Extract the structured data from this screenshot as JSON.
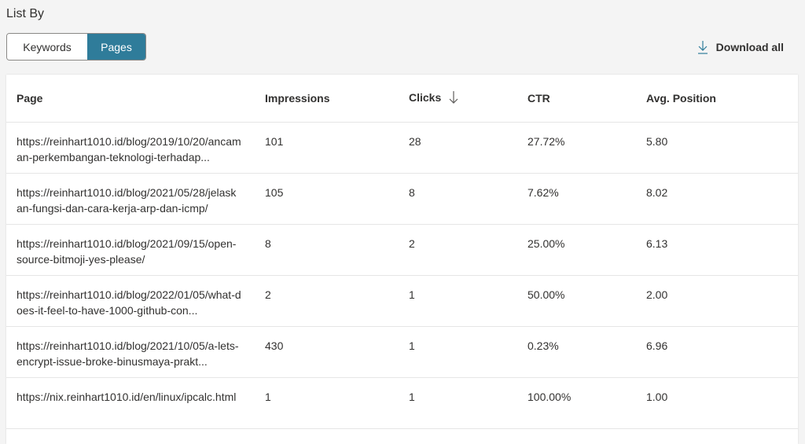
{
  "list_by_label": "List By",
  "toggle": {
    "keywords": "Keywords",
    "pages": "Pages",
    "selected": "Pages"
  },
  "download_label": "Download all",
  "accent": "#2f7c9a",
  "table": {
    "headers": [
      "Page",
      "Impressions",
      "Clicks",
      "CTR",
      "Avg. Position"
    ],
    "sorted_by": "Clicks",
    "sort_direction": "descending",
    "rows": [
      {
        "page": "https://reinhart1010.id/blog/2019/10/20/ancaman-perkembangan-teknologi-terhadap...",
        "impressions": "101",
        "clicks": "28",
        "ctr": "27.72%",
        "position": "5.80"
      },
      {
        "page": "https://reinhart1010.id/blog/2021/05/28/jelaskan-fungsi-dan-cara-kerja-arp-dan-icmp/",
        "impressions": "105",
        "clicks": "8",
        "ctr": "7.62%",
        "position": "8.02"
      },
      {
        "page": "https://reinhart1010.id/blog/2021/09/15/open-source-bitmoji-yes-please/",
        "impressions": "8",
        "clicks": "2",
        "ctr": "25.00%",
        "position": "6.13"
      },
      {
        "page": "https://reinhart1010.id/blog/2022/01/05/what-does-it-feel-to-have-1000-github-con...",
        "impressions": "2",
        "clicks": "1",
        "ctr": "50.00%",
        "position": "2.00"
      },
      {
        "page": "https://reinhart1010.id/blog/2021/10/05/a-lets-encrypt-issue-broke-binusmaya-prakt...",
        "impressions": "430",
        "clicks": "1",
        "ctr": "0.23%",
        "position": "6.96"
      },
      {
        "page": "https://nix.reinhart1010.id/en/linux/ipcalc.html",
        "impressions": "1",
        "clicks": "1",
        "ctr": "100.00%",
        "position": "1.00"
      }
    ]
  }
}
